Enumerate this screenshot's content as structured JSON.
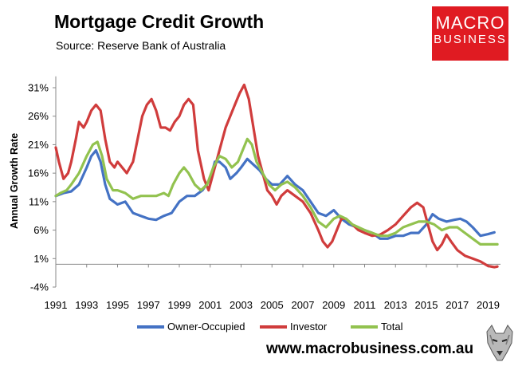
{
  "header": {
    "title": "Mortgage Credit Growth",
    "subtitle": "Source: Reserve Bank of Australia"
  },
  "logo": {
    "line1": "MACRO",
    "line2": "BUSINESS",
    "color": "#e01b22"
  },
  "footer": {
    "url": "www.macrobusiness.com.au"
  },
  "chart_data": {
    "type": "line",
    "ylabel": "Annual Growth Rate",
    "ylim": [
      -4,
      33
    ],
    "yticks": [
      -4,
      1,
      6,
      11,
      16,
      21,
      26,
      31
    ],
    "ytick_labels": [
      "-4%",
      "1%",
      "6%",
      "11%",
      "16%",
      "21%",
      "26%",
      "31%"
    ],
    "xlim": [
      1991,
      2019.8
    ],
    "xticks": [
      1991,
      1993,
      1995,
      1997,
      1999,
      2001,
      2003,
      2005,
      2007,
      2009,
      2011,
      2013,
      2015,
      2017,
      2019
    ],
    "xtick_labels": [
      "1991",
      "1993",
      "1995",
      "1997",
      "1999",
      "2001",
      "2003",
      "2005",
      "2007",
      "2009",
      "2011",
      "2013",
      "2015",
      "2017",
      "2019"
    ],
    "grid": false,
    "legend_position": "bottom",
    "series": [
      {
        "name": "Owner-Occupied",
        "color": "#4472c4",
        "points": [
          [
            1991,
            12
          ],
          [
            1991.5,
            12.5
          ],
          [
            1992,
            12.8
          ],
          [
            1992.5,
            14
          ],
          [
            1993,
            17
          ],
          [
            1993.3,
            19
          ],
          [
            1993.6,
            20
          ],
          [
            1993.9,
            18
          ],
          [
            1994.2,
            14
          ],
          [
            1994.5,
            11.5
          ],
          [
            1995,
            10.5
          ],
          [
            1995.5,
            11
          ],
          [
            1996,
            9
          ],
          [
            1996.5,
            8.5
          ],
          [
            1997,
            8
          ],
          [
            1997.5,
            7.8
          ],
          [
            1998,
            8.5
          ],
          [
            1998.5,
            9
          ],
          [
            1999,
            11
          ],
          [
            1999.5,
            12
          ],
          [
            2000,
            12
          ],
          [
            2000.5,
            13
          ],
          [
            2001,
            15
          ],
          [
            2001.3,
            18
          ],
          [
            2001.6,
            18
          ],
          [
            2002,
            17
          ],
          [
            2002.3,
            15
          ],
          [
            2002.7,
            16
          ],
          [
            2003,
            17
          ],
          [
            2003.4,
            18.5
          ],
          [
            2003.8,
            17.5
          ],
          [
            2004.2,
            16.5
          ],
          [
            2004.6,
            15
          ],
          [
            2005,
            14
          ],
          [
            2005.5,
            14
          ],
          [
            2006,
            15.5
          ],
          [
            2006.5,
            14
          ],
          [
            2007,
            13
          ],
          [
            2007.5,
            11
          ],
          [
            2008,
            9
          ],
          [
            2008.5,
            8.5
          ],
          [
            2009,
            9.5
          ],
          [
            2009.5,
            8
          ],
          [
            2010,
            7
          ],
          [
            2010.5,
            6.5
          ],
          [
            2011,
            6
          ],
          [
            2011.5,
            5.5
          ],
          [
            2012,
            4.5
          ],
          [
            2012.5,
            4.5
          ],
          [
            2013,
            5
          ],
          [
            2013.5,
            5
          ],
          [
            2014,
            5.5
          ],
          [
            2014.5,
            5.5
          ],
          [
            2015,
            7
          ],
          [
            2015.4,
            8.8
          ],
          [
            2015.8,
            8
          ],
          [
            2016.3,
            7.5
          ],
          [
            2016.8,
            7.8
          ],
          [
            2017.2,
            8
          ],
          [
            2017.6,
            7.5
          ],
          [
            2018,
            6.5
          ],
          [
            2018.5,
            5
          ],
          [
            2019,
            5.3
          ],
          [
            2019.4,
            5.6
          ]
        ]
      },
      {
        "name": "Investor",
        "color": "#d03c3c",
        "points": [
          [
            1991,
            20.5
          ],
          [
            1991.2,
            18
          ],
          [
            1991.5,
            15
          ],
          [
            1991.8,
            16
          ],
          [
            1992,
            18
          ],
          [
            1992.3,
            22
          ],
          [
            1992.5,
            25
          ],
          [
            1992.8,
            24
          ],
          [
            1993,
            25
          ],
          [
            1993.3,
            27
          ],
          [
            1993.6,
            28
          ],
          [
            1993.9,
            27
          ],
          [
            1994.2,
            22
          ],
          [
            1994.5,
            18
          ],
          [
            1994.8,
            17
          ],
          [
            1995,
            18
          ],
          [
            1995.3,
            17
          ],
          [
            1995.6,
            16
          ],
          [
            1996,
            18
          ],
          [
            1996.3,
            22
          ],
          [
            1996.6,
            26
          ],
          [
            1996.9,
            28
          ],
          [
            1997.2,
            29
          ],
          [
            1997.5,
            27
          ],
          [
            1997.8,
            24
          ],
          [
            1998.1,
            24
          ],
          [
            1998.4,
            23.5
          ],
          [
            1998.7,
            25
          ],
          [
            1999,
            26
          ],
          [
            1999.3,
            28
          ],
          [
            1999.6,
            29
          ],
          [
            1999.9,
            28
          ],
          [
            2000.2,
            20
          ],
          [
            2000.6,
            15
          ],
          [
            2000.9,
            13
          ],
          [
            2001.2,
            16
          ],
          [
            2001.5,
            19
          ],
          [
            2001.8,
            22
          ],
          [
            2002,
            24
          ],
          [
            2002.3,
            26
          ],
          [
            2002.6,
            28
          ],
          [
            2002.9,
            30
          ],
          [
            2003.2,
            31.5
          ],
          [
            2003.5,
            29
          ],
          [
            2003.8,
            24
          ],
          [
            2004.1,
            19
          ],
          [
            2004.4,
            16
          ],
          [
            2004.7,
            13
          ],
          [
            2005,
            12
          ],
          [
            2005.3,
            10.5
          ],
          [
            2005.6,
            12
          ],
          [
            2006,
            13
          ],
          [
            2006.5,
            12
          ],
          [
            2007,
            11
          ],
          [
            2007.5,
            9
          ],
          [
            2008,
            6
          ],
          [
            2008.3,
            4
          ],
          [
            2008.6,
            3
          ],
          [
            2008.9,
            4
          ],
          [
            2009.2,
            6
          ],
          [
            2009.5,
            8
          ],
          [
            2009.8,
            8
          ],
          [
            2010.2,
            7
          ],
          [
            2010.6,
            6
          ],
          [
            2011,
            5.5
          ],
          [
            2011.5,
            5
          ],
          [
            2012,
            5.2
          ],
          [
            2012.5,
            6
          ],
          [
            2013,
            7
          ],
          [
            2013.5,
            8.5
          ],
          [
            2014,
            10
          ],
          [
            2014.4,
            10.8
          ],
          [
            2014.8,
            10
          ],
          [
            2015.1,
            7
          ],
          [
            2015.4,
            4
          ],
          [
            2015.7,
            2.5
          ],
          [
            2016,
            3.5
          ],
          [
            2016.3,
            5.2
          ],
          [
            2016.6,
            4
          ],
          [
            2017,
            2.5
          ],
          [
            2017.5,
            1.5
          ],
          [
            2018,
            1
          ],
          [
            2018.5,
            0.5
          ],
          [
            2019,
            -0.3
          ],
          [
            2019.4,
            -0.5
          ],
          [
            2019.6,
            -0.4
          ]
        ]
      },
      {
        "name": "Total",
        "color": "#92c24f",
        "points": [
          [
            1991,
            12
          ],
          [
            1991.3,
            12.5
          ],
          [
            1991.7,
            13
          ],
          [
            1992,
            14
          ],
          [
            1992.5,
            16
          ],
          [
            1993,
            19
          ],
          [
            1993.4,
            21
          ],
          [
            1993.7,
            21.5
          ],
          [
            1994,
            19
          ],
          [
            1994.3,
            15
          ],
          [
            1994.7,
            13
          ],
          [
            1995,
            13
          ],
          [
            1995.5,
            12.5
          ],
          [
            1996,
            11.5
          ],
          [
            1996.5,
            12
          ],
          [
            1997,
            12
          ],
          [
            1997.5,
            12
          ],
          [
            1998,
            12.5
          ],
          [
            1998.3,
            12
          ],
          [
            1998.6,
            14
          ],
          [
            1999,
            16
          ],
          [
            1999.3,
            17
          ],
          [
            1999.6,
            16
          ],
          [
            2000,
            14
          ],
          [
            2000.4,
            13
          ],
          [
            2000.8,
            14
          ],
          [
            2001.2,
            17
          ],
          [
            2001.6,
            19
          ],
          [
            2002,
            18.5
          ],
          [
            2002.4,
            17
          ],
          [
            2002.8,
            18
          ],
          [
            2003.1,
            20
          ],
          [
            2003.4,
            22
          ],
          [
            2003.7,
            21
          ],
          [
            2004,
            18
          ],
          [
            2004.4,
            16
          ],
          [
            2004.8,
            14
          ],
          [
            2005.2,
            13
          ],
          [
            2005.6,
            14
          ],
          [
            2006,
            14.5
          ],
          [
            2006.5,
            13.5
          ],
          [
            2007,
            12
          ],
          [
            2007.5,
            10
          ],
          [
            2008,
            7.5
          ],
          [
            2008.5,
            6.5
          ],
          [
            2009,
            8
          ],
          [
            2009.4,
            8.5
          ],
          [
            2009.8,
            8
          ],
          [
            2010.2,
            7
          ],
          [
            2010.6,
            6.5
          ],
          [
            2011,
            6
          ],
          [
            2011.5,
            5.5
          ],
          [
            2012,
            5
          ],
          [
            2012.5,
            5
          ],
          [
            2013,
            5.5
          ],
          [
            2013.5,
            6.5
          ],
          [
            2014,
            7
          ],
          [
            2014.5,
            7.5
          ],
          [
            2015,
            7.5
          ],
          [
            2015.5,
            7
          ],
          [
            2016,
            6
          ],
          [
            2016.5,
            6.5
          ],
          [
            2017,
            6.5
          ],
          [
            2017.5,
            5.5
          ],
          [
            2018,
            4.5
          ],
          [
            2018.5,
            3.5
          ],
          [
            2019,
            3.5
          ],
          [
            2019.6,
            3.5
          ]
        ]
      }
    ]
  }
}
